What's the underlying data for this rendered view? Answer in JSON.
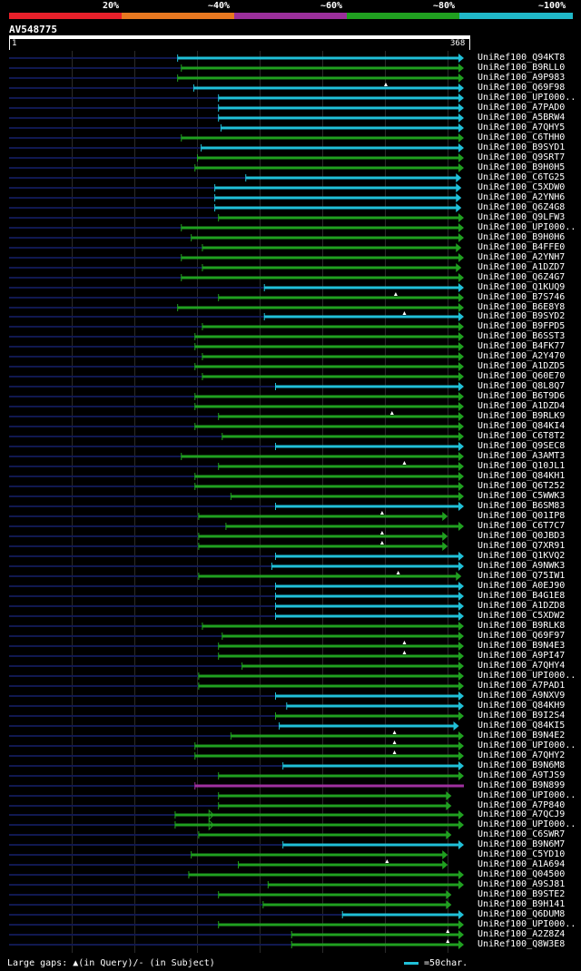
{
  "scale": {
    "labels": [
      "20%",
      "~40%",
      "~60%",
      "~80%",
      "~100%"
    ],
    "colors": [
      "#e8202a",
      "#e87820",
      "#9b2f9b",
      "#20a020",
      "#20b8c8"
    ]
  },
  "query": {
    "name": "AV548775",
    "start": "1",
    "end": "368",
    "length": 368
  },
  "colors": {
    "cyan": "#20c0d8",
    "green": "#20a020",
    "purple": "#a030a0",
    "navy": "#101850",
    "marker": "#ffffff"
  },
  "hits": [
    {
      "label": "UniRef100_Q94KT8",
      "start": 137,
      "end": 368,
      "color": "cyan",
      "arrow": true
    },
    {
      "label": "UniRef100_B9RLL0",
      "start": 140,
      "end": 368,
      "color": "green",
      "arrow": true
    },
    {
      "label": "UniRef100_A9P983",
      "start": 137,
      "end": 368,
      "color": "green",
      "arrow": true
    },
    {
      "label": "UniRef100_Q69F98",
      "start": 150,
      "end": 368,
      "color": "cyan",
      "arrow": true,
      "mark": 305
    },
    {
      "label": "UniRef100_UPI000..",
      "start": 170,
      "end": 368,
      "color": "cyan",
      "arrow": true
    },
    {
      "label": "UniRef100_A7PAD0",
      "start": 170,
      "end": 368,
      "color": "cyan",
      "arrow": true
    },
    {
      "label": "UniRef100_A5BRW4",
      "start": 170,
      "end": 368,
      "color": "cyan",
      "arrow": true
    },
    {
      "label": "UniRef100_A7QHY5",
      "start": 172,
      "end": 368,
      "color": "cyan",
      "arrow": true
    },
    {
      "label": "UniRef100_C6THH0",
      "start": 140,
      "end": 368,
      "color": "green",
      "arrow": true
    },
    {
      "label": "UniRef100_B9SYD1",
      "start": 156,
      "end": 368,
      "color": "cyan",
      "arrow": true
    },
    {
      "label": "UniRef100_Q9SRT7",
      "start": 153,
      "end": 368,
      "color": "green",
      "arrow": true
    },
    {
      "label": "UniRef100_B9H0H5",
      "start": 151,
      "end": 368,
      "color": "green",
      "arrow": true
    },
    {
      "label": "UniRef100_C6TG25",
      "start": 192,
      "end": 366,
      "color": "cyan",
      "arrow": true
    },
    {
      "label": "UniRef100_C5XDW0",
      "start": 167,
      "end": 366,
      "color": "cyan",
      "arrow": true
    },
    {
      "label": "UniRef100_A2YNH6",
      "start": 167,
      "end": 366,
      "color": "cyan",
      "arrow": true
    },
    {
      "label": "UniRef100_Q6Z4G8",
      "start": 167,
      "end": 366,
      "color": "cyan",
      "arrow": true
    },
    {
      "label": "UniRef100_Q9LFW3",
      "start": 170,
      "end": 368,
      "color": "green",
      "arrow": true
    },
    {
      "label": "UniRef100_UPI000..",
      "start": 140,
      "end": 368,
      "color": "green",
      "arrow": true
    },
    {
      "label": "UniRef100_B9H0H6",
      "start": 148,
      "end": 368,
      "color": "green",
      "arrow": true
    },
    {
      "label": "UniRef100_B4FFE0",
      "start": 157,
      "end": 366,
      "color": "green",
      "arrow": true
    },
    {
      "label": "UniRef100_A2YNH7",
      "start": 140,
      "end": 368,
      "color": "green",
      "arrow": true
    },
    {
      "label": "UniRef100_A1DZD7",
      "start": 157,
      "end": 366,
      "color": "green",
      "arrow": true
    },
    {
      "label": "UniRef100_Q6Z4G7",
      "start": 140,
      "end": 368,
      "color": "green",
      "arrow": true
    },
    {
      "label": "UniRef100_Q1KUQ9",
      "start": 207,
      "end": 368,
      "color": "cyan",
      "arrow": true
    },
    {
      "label": "UniRef100_B7S746",
      "start": 170,
      "end": 368,
      "color": "green",
      "arrow": true,
      "mark": 313
    },
    {
      "label": "UniRef100_B6E8Y8",
      "start": 137,
      "end": 368,
      "color": "green",
      "arrow": true
    },
    {
      "label": "UniRef100_B9SYD2",
      "start": 207,
      "end": 368,
      "color": "cyan",
      "arrow": true,
      "mark": 320
    },
    {
      "label": "UniRef100_B9FPD5",
      "start": 157,
      "end": 368,
      "color": "green",
      "arrow": true
    },
    {
      "label": "UniRef100_B6SST3",
      "start": 151,
      "end": 368,
      "color": "green",
      "arrow": true
    },
    {
      "label": "UniRef100_B4FK77",
      "start": 151,
      "end": 368,
      "color": "green",
      "arrow": true
    },
    {
      "label": "UniRef100_A2Y470",
      "start": 157,
      "end": 368,
      "color": "green",
      "arrow": true
    },
    {
      "label": "UniRef100_A1DZD5",
      "start": 151,
      "end": 368,
      "color": "green",
      "arrow": true
    },
    {
      "label": "UniRef100_Q60E70",
      "start": 157,
      "end": 368,
      "color": "green",
      "arrow": true
    },
    {
      "label": "UniRef100_Q8L8Q7",
      "start": 216,
      "end": 368,
      "color": "cyan",
      "arrow": true
    },
    {
      "label": "UniRef100_B6T9D6",
      "start": 151,
      "end": 368,
      "color": "green",
      "arrow": true
    },
    {
      "label": "UniRef100_A1DZD4",
      "start": 151,
      "end": 368,
      "color": "green",
      "arrow": true
    },
    {
      "label": "UniRef100_B9RLK9",
      "start": 170,
      "end": 368,
      "color": "green",
      "arrow": true,
      "mark": 310
    },
    {
      "label": "UniRef100_Q84KI4",
      "start": 151,
      "end": 368,
      "color": "green",
      "arrow": true
    },
    {
      "label": "UniRef100_C6T8T2",
      "start": 173,
      "end": 368,
      "color": "green",
      "arrow": true
    },
    {
      "label": "UniRef100_Q9SEC8",
      "start": 216,
      "end": 368,
      "color": "cyan",
      "arrow": true
    },
    {
      "label": "UniRef100_A3AMT3",
      "start": 140,
      "end": 368,
      "color": "green",
      "arrow": true
    },
    {
      "label": "UniRef100_Q10JL1",
      "start": 170,
      "end": 368,
      "color": "green",
      "arrow": true,
      "mark": 320
    },
    {
      "label": "UniRef100_Q84KH1",
      "start": 151,
      "end": 368,
      "color": "green",
      "arrow": true
    },
    {
      "label": "UniRef100_Q6T252",
      "start": 151,
      "end": 368,
      "color": "green",
      "arrow": true
    },
    {
      "label": "UniRef100_C5WWK3",
      "start": 180,
      "end": 368,
      "color": "green",
      "arrow": true
    },
    {
      "label": "UniRef100_B6SM83",
      "start": 216,
      "end": 368,
      "color": "cyan",
      "arrow": true
    },
    {
      "label": "UniRef100_Q01IP8",
      "start": 154,
      "end": 355,
      "color": "green",
      "arrow": true,
      "mark": 302
    },
    {
      "label": "UniRef100_C6T7C7",
      "start": 176,
      "end": 368,
      "color": "green",
      "arrow": true
    },
    {
      "label": "UniRef100_Q0JBD3",
      "start": 154,
      "end": 355,
      "color": "green",
      "arrow": true,
      "mark": 302
    },
    {
      "label": "UniRef100_Q7XR91",
      "start": 154,
      "end": 355,
      "color": "green",
      "arrow": true,
      "mark": 302
    },
    {
      "label": "UniRef100_Q1KVQ2",
      "start": 216,
      "end": 368,
      "color": "cyan",
      "arrow": true
    },
    {
      "label": "UniRef100_A9NWK3",
      "start": 213,
      "end": 368,
      "color": "cyan",
      "arrow": true
    },
    {
      "label": "UniRef100_Q75IW1",
      "start": 154,
      "end": 366,
      "color": "green",
      "arrow": true,
      "mark": 315
    },
    {
      "label": "UniRef100_A0EJ90",
      "start": 216,
      "end": 368,
      "color": "cyan",
      "arrow": true
    },
    {
      "label": "UniRef100_B4G1E8",
      "start": 216,
      "end": 368,
      "color": "cyan",
      "arrow": true
    },
    {
      "label": "UniRef100_A1DZD8",
      "start": 216,
      "end": 368,
      "color": "cyan",
      "arrow": true
    },
    {
      "label": "UniRef100_C5XDW2",
      "start": 216,
      "end": 368,
      "color": "cyan",
      "arrow": true
    },
    {
      "label": "UniRef100_B9RLK8",
      "start": 157,
      "end": 368,
      "color": "green",
      "arrow": true
    },
    {
      "label": "UniRef100_Q69F97",
      "start": 173,
      "end": 368,
      "color": "green",
      "arrow": true
    },
    {
      "label": "UniRef100_B9N4E3",
      "start": 170,
      "end": 368,
      "color": "green",
      "arrow": true,
      "mark": 320
    },
    {
      "label": "UniRef100_A9PI47",
      "start": 170,
      "end": 368,
      "color": "green",
      "arrow": true,
      "mark": 320
    },
    {
      "label": "UniRef100_A7QHY4",
      "start": 189,
      "end": 368,
      "color": "green",
      "arrow": true
    },
    {
      "label": "UniRef100_UPI000..",
      "start": 154,
      "end": 368,
      "color": "green",
      "arrow": true
    },
    {
      "label": "UniRef100_A7PAD1",
      "start": 154,
      "end": 368,
      "color": "green",
      "arrow": true
    },
    {
      "label": "UniRef100_A9NXV9",
      "start": 216,
      "end": 368,
      "color": "cyan",
      "arrow": true
    },
    {
      "label": "UniRef100_Q84KH9",
      "start": 225,
      "end": 368,
      "color": "cyan",
      "arrow": true
    },
    {
      "label": "UniRef100_B9I2S4",
      "start": 216,
      "end": 368,
      "color": "green",
      "arrow": true
    },
    {
      "label": "UniRef100_Q84KI5",
      "start": 219,
      "end": 364,
      "color": "cyan",
      "arrow": true
    },
    {
      "label": "UniRef100_B9N4E2",
      "start": 180,
      "end": 368,
      "color": "green",
      "arrow": true,
      "mark": 312
    },
    {
      "label": "UniRef100_UPI000..",
      "start": 151,
      "end": 368,
      "color": "green",
      "arrow": true,
      "mark": 312
    },
    {
      "label": "UniRef100_A7QHY2",
      "start": 151,
      "end": 368,
      "color": "green",
      "arrow": true,
      "mark": 312
    },
    {
      "label": "UniRef100_B9N6M8",
      "start": 222,
      "end": 368,
      "color": "cyan",
      "arrow": true
    },
    {
      "label": "UniRef100_A9TJS9",
      "start": 170,
      "end": 368,
      "color": "green",
      "arrow": true
    },
    {
      "label": "UniRef100_B9N899",
      "start": 151,
      "end": 368,
      "color": "purple",
      "arrow": false
    },
    {
      "label": "UniRef100_UPI000..",
      "start": 170,
      "end": 358,
      "color": "green",
      "arrow": true
    },
    {
      "label": "UniRef100_A7P840",
      "start": 170,
      "end": 358,
      "color": "green",
      "arrow": true
    },
    {
      "label": "UniRef100_A7QCJ9",
      "start": 135,
      "end": 368,
      "color": "green",
      "arrow": true,
      "stub": true
    },
    {
      "label": "UniRef100_UPI000..",
      "start": 135,
      "end": 368,
      "color": "green",
      "arrow": true,
      "stub": true
    },
    {
      "label": "UniRef100_C6SWR7",
      "start": 154,
      "end": 358,
      "color": "green",
      "arrow": true
    },
    {
      "label": "UniRef100_B9N6M7",
      "start": 222,
      "end": 368,
      "color": "cyan",
      "arrow": true
    },
    {
      "label": "UniRef100_C5YD10",
      "start": 148,
      "end": 355,
      "color": "green",
      "arrow": true
    },
    {
      "label": "UniRef100_A1A694",
      "start": 186,
      "end": 355,
      "color": "green",
      "arrow": true,
      "mark": 306
    },
    {
      "label": "UniRef100_Q04500",
      "start": 146,
      "end": 368,
      "color": "green",
      "arrow": true
    },
    {
      "label": "UniRef100_A9SJ81",
      "start": 210,
      "end": 368,
      "color": "green",
      "arrow": true
    },
    {
      "label": "UniRef100_B9STE2",
      "start": 170,
      "end": 358,
      "color": "green",
      "arrow": true
    },
    {
      "label": "UniRef100_B9H141",
      "start": 206,
      "end": 358,
      "color": "green",
      "arrow": true
    },
    {
      "label": "UniRef100_Q6DUM8",
      "start": 270,
      "end": 368,
      "color": "cyan",
      "arrow": true
    },
    {
      "label": "UniRef100_UPI000..",
      "start": 170,
      "end": 368,
      "color": "green",
      "arrow": true
    },
    {
      "label": "UniRef100_A2Z8Z4",
      "start": 229,
      "end": 368,
      "color": "green",
      "arrow": true,
      "mark": 355
    },
    {
      "label": "UniRef100_Q8W3E8",
      "start": 229,
      "end": 368,
      "color": "green",
      "arrow": true,
      "mark": 355
    }
  ],
  "legend": {
    "text": "Large gaps: ▲(in Query)/- (in Subject)",
    "key": "=50char."
  }
}
